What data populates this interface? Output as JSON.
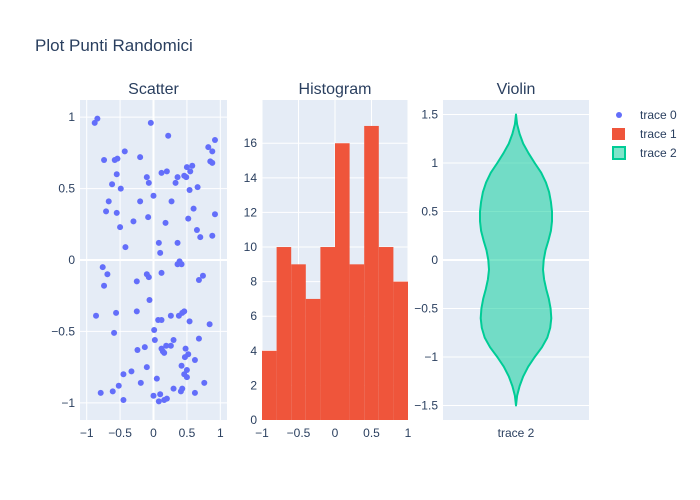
{
  "title": "Plot Punti Randomici",
  "colors": {
    "background": "#ffffff",
    "plot_bg": "#e5ecf6",
    "grid": "#ffffff",
    "text": "#2a3f5f",
    "trace0": "#636efa",
    "trace1": "#ef553b",
    "trace2": "#00cc96"
  },
  "legend": {
    "position": "top-right",
    "items": [
      {
        "label": "trace 0",
        "symbol": "dot"
      },
      {
        "label": "trace 1",
        "symbol": "square"
      },
      {
        "label": "trace 2",
        "symbol": "box"
      }
    ]
  },
  "chart_data": [
    {
      "type": "scatter",
      "title": "Scatter",
      "series_name": "trace 0",
      "xlim": [
        -1.1,
        1.1
      ],
      "ylim": [
        -1.12,
        1.12
      ],
      "xticks": [
        -1,
        -0.5,
        0,
        0.5,
        1
      ],
      "xtick_labels": [
        "−1",
        "−0.5",
        "0",
        "0.5",
        "1"
      ],
      "yticks": [
        -1,
        -0.5,
        0,
        0.5,
        1
      ],
      "ytick_labels": [
        "−1",
        "−0.5",
        "0",
        "0.5",
        "1"
      ],
      "grid": true,
      "points": [
        [
          -0.88,
          0.96
        ],
        [
          -0.84,
          0.99
        ],
        [
          -0.04,
          0.96
        ],
        [
          0.22,
          0.87
        ],
        [
          0.92,
          0.84
        ],
        [
          0.88,
          0.76
        ],
        [
          0.82,
          0.79
        ],
        [
          -0.74,
          0.7
        ],
        [
          -0.43,
          0.76
        ],
        [
          -0.2,
          0.72
        ],
        [
          -0.58,
          0.7
        ],
        [
          -0.54,
          0.71
        ],
        [
          0.12,
          0.61
        ],
        [
          0.2,
          0.62
        ],
        [
          0.5,
          0.65
        ],
        [
          0.58,
          0.66
        ],
        [
          0.85,
          0.69
        ],
        [
          0.88,
          0.68
        ],
        [
          0.46,
          0.59
        ],
        [
          0.49,
          0.58
        ],
        [
          0.55,
          0.62
        ],
        [
          0.33,
          0.54
        ],
        [
          0.36,
          0.58
        ],
        [
          -0.55,
          0.6
        ],
        [
          -0.62,
          0.53
        ],
        [
          -0.07,
          0.54
        ],
        [
          -0.1,
          0.58
        ],
        [
          0.54,
          0.49
        ],
        [
          0.66,
          0.51
        ],
        [
          -0.49,
          0.5
        ],
        [
          0.27,
          0.41
        ],
        [
          0.0,
          0.45
        ],
        [
          0.6,
          0.36
        ],
        [
          -0.67,
          0.41
        ],
        [
          -0.2,
          0.41
        ],
        [
          -0.71,
          0.34
        ],
        [
          0.92,
          0.32
        ],
        [
          -0.55,
          0.33
        ],
        [
          -0.08,
          0.3
        ],
        [
          0.52,
          0.29
        ],
        [
          0.18,
          0.26
        ],
        [
          -0.3,
          0.27
        ],
        [
          -0.5,
          0.23
        ],
        [
          0.65,
          0.21
        ],
        [
          0.88,
          0.17
        ],
        [
          0.7,
          0.16
        ],
        [
          0.36,
          0.12
        ],
        [
          0.08,
          0.12
        ],
        [
          -0.42,
          0.09
        ],
        [
          0.1,
          0.05
        ],
        [
          0.42,
          -0.03
        ],
        [
          0.36,
          -0.03
        ],
        [
          0.39,
          -0.01
        ],
        [
          -0.76,
          -0.05
        ],
        [
          -0.1,
          -0.1
        ],
        [
          0.12,
          -0.09
        ],
        [
          -0.69,
          -0.1
        ],
        [
          -0.07,
          -0.12
        ],
        [
          0.68,
          -0.14
        ],
        [
          0.74,
          -0.11
        ],
        [
          -0.25,
          -0.15
        ],
        [
          -0.74,
          -0.18
        ],
        [
          -0.86,
          -0.39
        ],
        [
          -0.06,
          -0.28
        ],
        [
          -0.25,
          -0.36
        ],
        [
          -0.56,
          -0.37
        ],
        [
          0.46,
          -0.36
        ],
        [
          0.43,
          -0.37
        ],
        [
          0.38,
          -0.39
        ],
        [
          0.26,
          -0.39
        ],
        [
          0.07,
          -0.42
        ],
        [
          0.12,
          -0.42
        ],
        [
          0.54,
          -0.43
        ],
        [
          0.84,
          -0.45
        ],
        [
          0.01,
          -0.49
        ],
        [
          -0.59,
          -0.51
        ],
        [
          0.68,
          -0.55
        ],
        [
          0.19,
          -0.6
        ],
        [
          0.26,
          -0.6
        ],
        [
          0.12,
          -0.62
        ],
        [
          0.14,
          -0.64
        ],
        [
          0.16,
          -0.65
        ],
        [
          0.48,
          -0.62
        ],
        [
          0.52,
          -0.66
        ],
        [
          0.47,
          -0.68
        ],
        [
          0.3,
          -0.56
        ],
        [
          0.62,
          -0.7
        ],
        [
          0.02,
          -0.56
        ],
        [
          -0.13,
          -0.61
        ],
        [
          -0.24,
          -0.63
        ],
        [
          -0.1,
          -0.75
        ],
        [
          0.42,
          -0.74
        ],
        [
          0.5,
          -0.77
        ],
        [
          0.46,
          -0.8
        ],
        [
          0.5,
          -0.82
        ],
        [
          -0.45,
          -0.8
        ],
        [
          -0.33,
          -0.78
        ],
        [
          0.05,
          -0.83
        ],
        [
          -0.19,
          -0.86
        ],
        [
          0.76,
          -0.86
        ],
        [
          0.3,
          -0.9
        ],
        [
          0.43,
          -0.9
        ],
        [
          0.41,
          -0.92
        ],
        [
          -0.52,
          -0.88
        ],
        [
          -0.79,
          -0.93
        ],
        [
          -0.61,
          -0.92
        ],
        [
          0.0,
          -0.95
        ],
        [
          0.1,
          -0.94
        ],
        [
          0.62,
          -0.93
        ],
        [
          -0.45,
          -0.98
        ],
        [
          0.08,
          -0.99
        ],
        [
          0.16,
          -0.98
        ],
        [
          0.2,
          -0.97
        ]
      ]
    },
    {
      "type": "bar",
      "title": "Histogram",
      "series_name": "trace 1",
      "xlim": [
        -1,
        1
      ],
      "ylim": [
        0,
        18.5
      ],
      "xticks": [
        -1,
        -0.5,
        0,
        0.5,
        1
      ],
      "xtick_labels": [
        "−1",
        "−0.5",
        "0",
        "0.5",
        "1"
      ],
      "yticks": [
        0,
        2,
        4,
        6,
        8,
        10,
        12,
        14,
        16
      ],
      "ytick_labels": [
        "0",
        "2",
        "4",
        "6",
        "8",
        "10",
        "12",
        "14",
        "16"
      ],
      "grid": true,
      "bin_edges": [
        -1,
        -0.8,
        -0.6,
        -0.4,
        -0.2,
        0,
        0.2,
        0.4,
        0.6,
        0.8,
        1
      ],
      "counts": [
        4,
        10,
        9,
        7,
        10,
        16,
        9,
        17,
        10,
        8
      ]
    },
    {
      "type": "violin",
      "title": "Violin",
      "series_name": "trace 2",
      "categories": [
        "trace 2"
      ],
      "ylim": [
        -1.65,
        1.65
      ],
      "yticks": [
        -1.5,
        -1,
        -0.5,
        0,
        0.5,
        1,
        1.5
      ],
      "ytick_labels": [
        "−1.5",
        "−1",
        "−0.5",
        "0",
        "0.5",
        "1",
        "1.5"
      ],
      "grid": true,
      "y_range": [
        -1.5,
        1.5
      ],
      "profile": [
        [
          1.5,
          0.0
        ],
        [
          1.4,
          0.03
        ],
        [
          1.3,
          0.1
        ],
        [
          1.2,
          0.2
        ],
        [
          1.1,
          0.35
        ],
        [
          1.0,
          0.52
        ],
        [
          0.9,
          0.7
        ],
        [
          0.8,
          0.83
        ],
        [
          0.7,
          0.92
        ],
        [
          0.6,
          0.97
        ],
        [
          0.5,
          1.0
        ],
        [
          0.4,
          1.0
        ],
        [
          0.3,
          0.97
        ],
        [
          0.2,
          0.9
        ],
        [
          0.1,
          0.82
        ],
        [
          0.0,
          0.77
        ],
        [
          -0.1,
          0.75
        ],
        [
          -0.2,
          0.78
        ],
        [
          -0.3,
          0.84
        ],
        [
          -0.4,
          0.91
        ],
        [
          -0.5,
          0.96
        ],
        [
          -0.6,
          0.98
        ],
        [
          -0.7,
          0.95
        ],
        [
          -0.8,
          0.87
        ],
        [
          -0.9,
          0.72
        ],
        [
          -1.0,
          0.52
        ],
        [
          -1.1,
          0.34
        ],
        [
          -1.2,
          0.2
        ],
        [
          -1.3,
          0.1
        ],
        [
          -1.4,
          0.03
        ],
        [
          -1.5,
          0.0
        ]
      ]
    }
  ]
}
